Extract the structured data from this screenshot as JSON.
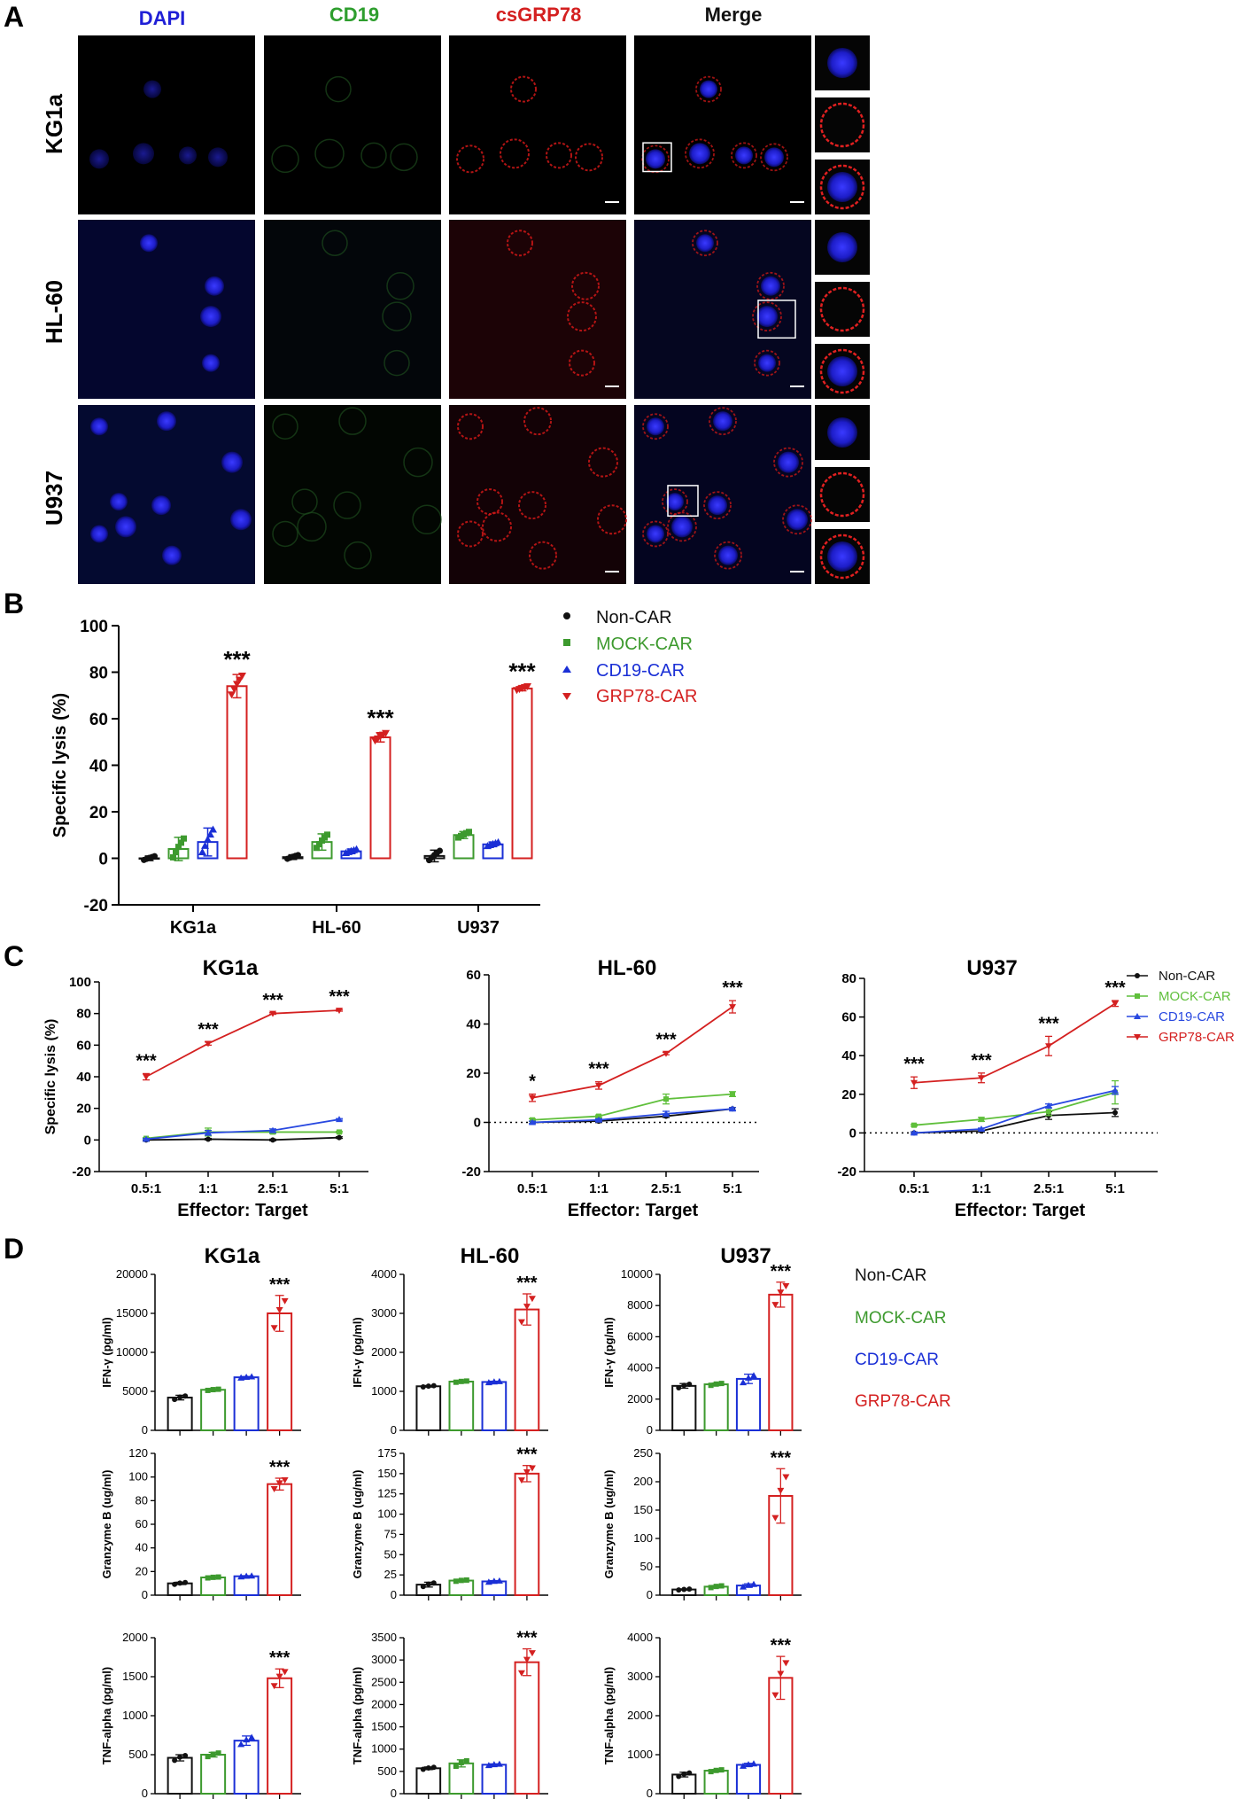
{
  "panels": {
    "A": {
      "letter": "A",
      "columns": [
        {
          "label": "DAPI",
          "color": "#1f1fd6"
        },
        {
          "label": "CD19",
          "color": "#2e9e2e"
        },
        {
          "label": "csGRP78",
          "color": "#d42020"
        },
        {
          "label": "Merge",
          "color": "#111111"
        }
      ],
      "rows": [
        "KG1a",
        "HL-60",
        "U937"
      ]
    },
    "B": {
      "letter": "B"
    },
    "C": {
      "letter": "C"
    },
    "D": {
      "letter": "D"
    }
  },
  "legend": {
    "groups": [
      {
        "name": "Non-CAR",
        "color": "#111111",
        "marker": "circle"
      },
      {
        "name": "MOCK-CAR",
        "color": "#3d9a2e",
        "marker": "square"
      },
      {
        "name": "CD19-CAR",
        "color": "#1a2fd6",
        "marker": "triangle"
      },
      {
        "name": "GRP78-CAR",
        "color": "#d42020",
        "marker": "triangle-down"
      }
    ]
  },
  "chart_data": [
    {
      "id": "B",
      "type": "bar",
      "ylabel": "Specific lysis (%)",
      "ylim": [
        -20,
        100
      ],
      "yticks": [
        -20,
        0,
        20,
        40,
        60,
        80,
        100
      ],
      "categories": [
        "KG1a",
        "HL-60",
        "U937"
      ],
      "series": [
        {
          "name": "Non-CAR",
          "values": [
            0,
            0.5,
            1
          ],
          "err": [
            1,
            1,
            2.5
          ]
        },
        {
          "name": "MOCK-CAR",
          "values": [
            4,
            7,
            10
          ],
          "err": [
            5,
            3.5,
            1.5
          ]
        },
        {
          "name": "CD19-CAR",
          "values": [
            7,
            3,
            6
          ],
          "err": [
            6,
            1,
            1
          ]
        },
        {
          "name": "GRP78-CAR",
          "values": [
            74,
            52,
            73
          ],
          "err": [
            5,
            2,
            1
          ]
        }
      ],
      "annotations": [
        "***",
        "***",
        "***"
      ]
    },
    {
      "id": "C1",
      "type": "line",
      "title": "KG1a",
      "xlabel": "Effector: Target",
      "ylabel": "Specific lysis (%)",
      "categories": [
        "0.5:1",
        "1:1",
        "2.5:1",
        "5:1"
      ],
      "ylim": [
        -20,
        100
      ],
      "yticks": [
        -20,
        0,
        20,
        40,
        60,
        80,
        100
      ],
      "zero_line": false,
      "series": [
        {
          "name": "Non-CAR",
          "values": [
            0,
            0.5,
            0,
            1.5
          ],
          "err": [
            0.5,
            0.5,
            0.5,
            0.5
          ]
        },
        {
          "name": "MOCK-CAR",
          "values": [
            1,
            5,
            5,
            5
          ],
          "err": [
            0.5,
            2.5,
            1,
            0.5
          ]
        },
        {
          "name": "CD19-CAR",
          "values": [
            0.5,
            4.5,
            6,
            13
          ],
          "err": [
            0.5,
            1.5,
            1,
            0.5
          ]
        },
        {
          "name": "GRP78-CAR",
          "values": [
            40,
            61,
            80,
            82
          ],
          "err": [
            2,
            1,
            0.5,
            0.5
          ]
        }
      ],
      "annotations": [
        "***",
        "***",
        "***",
        "***"
      ]
    },
    {
      "id": "C2",
      "type": "line",
      "title": "HL-60",
      "xlabel": "Effector: Target",
      "ylabel": "",
      "categories": [
        "0.5:1",
        "1:1",
        "2.5:1",
        "5:1"
      ],
      "ylim": [
        -20,
        60
      ],
      "yticks": [
        -20,
        0,
        20,
        40,
        60
      ],
      "zero_line": true,
      "series": [
        {
          "name": "Non-CAR",
          "values": [
            0,
            0.5,
            2.5,
            5.5
          ],
          "err": [
            0.5,
            0.5,
            0.5,
            0.5
          ]
        },
        {
          "name": "MOCK-CAR",
          "values": [
            1,
            2.5,
            9.5,
            11.5
          ],
          "err": [
            0.5,
            0.5,
            2,
            1
          ]
        },
        {
          "name": "CD19-CAR",
          "values": [
            0,
            1,
            3.5,
            5.5
          ],
          "err": [
            0.5,
            0.5,
            1,
            0.5
          ]
        },
        {
          "name": "GRP78-CAR",
          "values": [
            10,
            15,
            28,
            47
          ],
          "err": [
            1.5,
            1.5,
            0.5,
            2.5
          ]
        }
      ],
      "annotations": [
        "*",
        "***",
        "***",
        "***"
      ]
    },
    {
      "id": "C3",
      "type": "line",
      "title": "U937",
      "xlabel": "Effector: Target",
      "ylabel": "",
      "categories": [
        "0.5:1",
        "1:1",
        "2.5:1",
        "5:1"
      ],
      "ylim": [
        -20,
        80
      ],
      "yticks": [
        -20,
        0,
        20,
        40,
        60,
        80
      ],
      "zero_line": true,
      "series": [
        {
          "name": "Non-CAR",
          "values": [
            0,
            1,
            9,
            10.5
          ],
          "err": [
            0.5,
            0.5,
            2,
            2
          ]
        },
        {
          "name": "MOCK-CAR",
          "values": [
            4,
            7,
            11,
            21
          ],
          "err": [
            0.5,
            1,
            2,
            6
          ]
        },
        {
          "name": "CD19-CAR",
          "values": [
            0,
            2,
            14,
            22
          ],
          "err": [
            0.5,
            0.5,
            1,
            2
          ]
        },
        {
          "name": "GRP78-CAR",
          "values": [
            26,
            28.5,
            45,
            67
          ],
          "err": [
            3,
            2.5,
            5,
            1.5
          ]
        }
      ],
      "annotations": [
        "***",
        "***",
        "***",
        "***"
      ]
    },
    {
      "id": "D-IFN-KG1a",
      "type": "bar",
      "title": "KG1a",
      "ylabel": "IFN-γ (pg/ml)",
      "ylim": [
        0,
        20000
      ],
      "yticks": [
        0,
        5000,
        10000,
        15000,
        20000
      ],
      "series": [
        {
          "name": "Non-CAR",
          "values": [
            4200
          ],
          "err": [
            300
          ]
        },
        {
          "name": "MOCK-CAR",
          "values": [
            5200
          ],
          "err": [
            100
          ]
        },
        {
          "name": "CD19-CAR",
          "values": [
            6800
          ],
          "err": [
            100
          ]
        },
        {
          "name": "GRP78-CAR",
          "values": [
            15000
          ],
          "err": [
            2300
          ]
        }
      ],
      "annotation": "***"
    },
    {
      "id": "D-IFN-HL60",
      "type": "bar",
      "title": "HL-60",
      "ylabel": "IFN-γ (pg/ml)",
      "ylim": [
        0,
        4000
      ],
      "yticks": [
        0,
        1000,
        2000,
        3000,
        4000
      ],
      "series": [
        {
          "name": "Non-CAR",
          "values": [
            1130
          ],
          "err": [
            20
          ]
        },
        {
          "name": "MOCK-CAR",
          "values": [
            1250
          ],
          "err": [
            20
          ]
        },
        {
          "name": "CD19-CAR",
          "values": [
            1240
          ],
          "err": [
            20
          ]
        },
        {
          "name": "GRP78-CAR",
          "values": [
            3100
          ],
          "err": [
            400
          ]
        }
      ],
      "annotation": "***"
    },
    {
      "id": "D-IFN-U937",
      "type": "bar",
      "title": "U937",
      "ylabel": "IFN-γ (pg/ml)",
      "ylim": [
        0,
        10000
      ],
      "yticks": [
        0,
        2000,
        4000,
        6000,
        8000,
        10000
      ],
      "series": [
        {
          "name": "Non-CAR",
          "values": [
            2850
          ],
          "err": [
            150
          ]
        },
        {
          "name": "MOCK-CAR",
          "values": [
            2950
          ],
          "err": [
            80
          ]
        },
        {
          "name": "CD19-CAR",
          "values": [
            3300
          ],
          "err": [
            300
          ]
        },
        {
          "name": "GRP78-CAR",
          "values": [
            8700
          ],
          "err": [
            800
          ]
        }
      ],
      "annotation": "***"
    },
    {
      "id": "D-GzmB-KG1a",
      "type": "bar",
      "ylabel": "Granzyme B (ug/ml)",
      "ylim": [
        0,
        120
      ],
      "yticks": [
        0,
        20,
        40,
        60,
        80,
        100,
        120
      ],
      "series": [
        {
          "name": "Non-CAR",
          "values": [
            10
          ],
          "err": [
            1
          ]
        },
        {
          "name": "MOCK-CAR",
          "values": [
            15
          ],
          "err": [
            0.5
          ]
        },
        {
          "name": "CD19-CAR",
          "values": [
            16
          ],
          "err": [
            0.5
          ]
        },
        {
          "name": "GRP78-CAR",
          "values": [
            94
          ],
          "err": [
            5
          ]
        }
      ],
      "annotation": "***"
    },
    {
      "id": "D-GzmB-HL60",
      "type": "bar",
      "ylabel": "Granzyme B (ug/ml)",
      "ylim": [
        0,
        175
      ],
      "yticks": [
        0,
        25,
        50,
        75,
        100,
        125,
        150,
        175
      ],
      "series": [
        {
          "name": "Non-CAR",
          "values": [
            13
          ],
          "err": [
            3
          ]
        },
        {
          "name": "MOCK-CAR",
          "values": [
            18
          ],
          "err": [
            1
          ]
        },
        {
          "name": "CD19-CAR",
          "values": [
            17
          ],
          "err": [
            1
          ]
        },
        {
          "name": "GRP78-CAR",
          "values": [
            150
          ],
          "err": [
            10
          ]
        }
      ],
      "annotation": "***"
    },
    {
      "id": "D-GzmB-U937",
      "type": "bar",
      "ylabel": "Granzyme B (ug/ml)",
      "ylim": [
        0,
        250
      ],
      "yticks": [
        0,
        50,
        100,
        150,
        200,
        250
      ],
      "series": [
        {
          "name": "Non-CAR",
          "values": [
            10
          ],
          "err": [
            1
          ]
        },
        {
          "name": "MOCK-CAR",
          "values": [
            15
          ],
          "err": [
            2
          ]
        },
        {
          "name": "CD19-CAR",
          "values": [
            17
          ],
          "err": [
            3
          ]
        },
        {
          "name": "GRP78-CAR",
          "values": [
            175
          ],
          "err": [
            48
          ]
        }
      ],
      "annotation": "***"
    },
    {
      "id": "D-TNF-KG1a",
      "type": "bar",
      "ylabel": "TNF-alpha (pg/ml)",
      "ylim": [
        0,
        2000
      ],
      "yticks": [
        0,
        500,
        1000,
        1500,
        2000
      ],
      "series": [
        {
          "name": "Non-CAR",
          "values": [
            460
          ],
          "err": [
            40
          ]
        },
        {
          "name": "MOCK-CAR",
          "values": [
            500
          ],
          "err": [
            30
          ]
        },
        {
          "name": "CD19-CAR",
          "values": [
            680
          ],
          "err": [
            60
          ]
        },
        {
          "name": "GRP78-CAR",
          "values": [
            1480
          ],
          "err": [
            120
          ]
        }
      ],
      "annotation": "***"
    },
    {
      "id": "D-TNF-HL60",
      "type": "bar",
      "ylabel": "TNF-alpha (pg/ml)",
      "ylim": [
        0,
        3500
      ],
      "yticks": [
        0,
        500,
        1000,
        1500,
        2000,
        2500,
        3000,
        3500
      ],
      "series": [
        {
          "name": "Non-CAR",
          "values": [
            570
          ],
          "err": [
            30
          ]
        },
        {
          "name": "MOCK-CAR",
          "values": [
            680
          ],
          "err": [
            80
          ]
        },
        {
          "name": "CD19-CAR",
          "values": [
            650
          ],
          "err": [
            20
          ]
        },
        {
          "name": "GRP78-CAR",
          "values": [
            2950
          ],
          "err": [
            300
          ]
        }
      ],
      "annotation": "***"
    },
    {
      "id": "D-TNF-U937",
      "type": "bar",
      "ylabel": "TNF-alpha (pg/ml)",
      "ylim": [
        0,
        4000
      ],
      "yticks": [
        0,
        1000,
        2000,
        3000,
        4000
      ],
      "series": [
        {
          "name": "Non-CAR",
          "values": [
            490
          ],
          "err": [
            60
          ]
        },
        {
          "name": "MOCK-CAR",
          "values": [
            590
          ],
          "err": [
            30
          ]
        },
        {
          "name": "CD19-CAR",
          "values": [
            740
          ],
          "err": [
            40
          ]
        },
        {
          "name": "GRP78-CAR",
          "values": [
            2970
          ],
          "err": [
            550
          ]
        }
      ],
      "annotation": "***"
    }
  ]
}
